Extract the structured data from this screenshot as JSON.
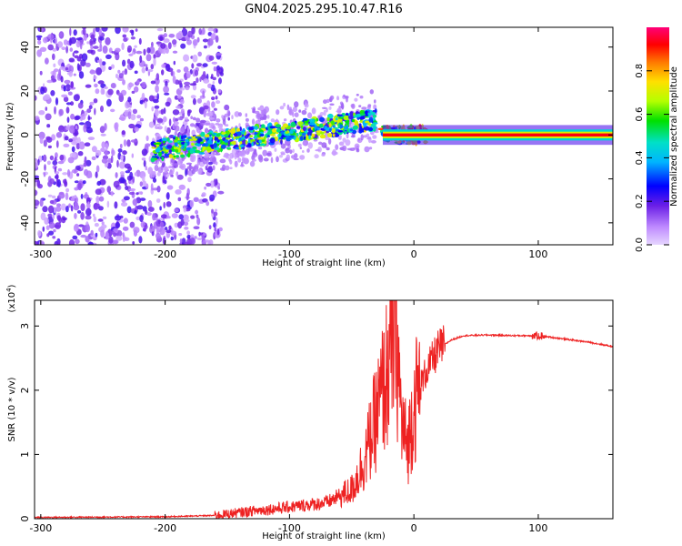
{
  "title": "GN04.2025.295.10.47.R16",
  "colors": {
    "snr_line": "#ee2222",
    "dense_signal": "#ff3333",
    "noise_purple": "#6a1ee6"
  },
  "chart_data": [
    {
      "type": "heatmap",
      "name": "spectrogram",
      "xlabel": "Height of straight line (km)",
      "ylabel": "Frequency (Hz)",
      "xlim": [
        -305,
        160
      ],
      "ylim": [
        -50,
        49
      ],
      "x_ticks": [
        -300,
        -200,
        -100,
        0,
        100
      ],
      "y_ticks": [
        -40,
        -20,
        0,
        20,
        40
      ],
      "colorbar": {
        "label": "Normalized spectral amplitude",
        "range": [
          0,
          1
        ],
        "ticks": [
          0.0,
          0.2,
          0.4,
          0.6,
          0.8
        ],
        "colormap": "rainbow (magenta-blue-cyan-green-yellow-red)"
      },
      "features": [
        {
          "region": "broadband noise",
          "x_range": [
            -305,
            -155
          ],
          "freq_range": [
            -50,
            49
          ],
          "amplitude": "low (0.1-0.3)"
        },
        {
          "region": "diagonal signal band",
          "x_range": [
            -210,
            -30
          ],
          "freq_center_start": -7,
          "freq_center_end": 7,
          "amplitude": "0.4-0.8"
        },
        {
          "region": "narrow constant-frequency line",
          "x_range": [
            -25,
            160
          ],
          "freq_center": 0,
          "amplitude": "~0.95"
        }
      ]
    },
    {
      "type": "line",
      "name": "snr",
      "xlabel": "Height of straight line (km)",
      "ylabel": "SNR (10 * v/v)",
      "y_multiplier": "(x10",
      "y_multiplier_exp": "4",
      "y_multiplier_close": ")",
      "xlim": [
        -305,
        160
      ],
      "ylim": [
        0,
        3.4
      ],
      "x_ticks": [
        -300,
        -200,
        -100,
        0,
        100
      ],
      "y_ticks": [
        0,
        1,
        2,
        3
      ],
      "series": [
        {
          "x": [
            -305,
            -200,
            -160,
            -130,
            -100,
            -70,
            -50,
            -40,
            -30,
            -20,
            -15,
            -10,
            -5,
            0,
            10,
            20,
            30,
            40,
            60,
            80,
            100,
            120,
            140,
            160
          ],
          "y": [
            0.02,
            0.03,
            0.05,
            0.12,
            0.18,
            0.25,
            0.45,
            0.9,
            1.6,
            2.4,
            3.2,
            1.5,
            1.1,
            1.8,
            2.3,
            2.65,
            2.78,
            2.85,
            2.86,
            2.85,
            2.85,
            2.8,
            2.75,
            2.68
          ]
        }
      ]
    }
  ]
}
